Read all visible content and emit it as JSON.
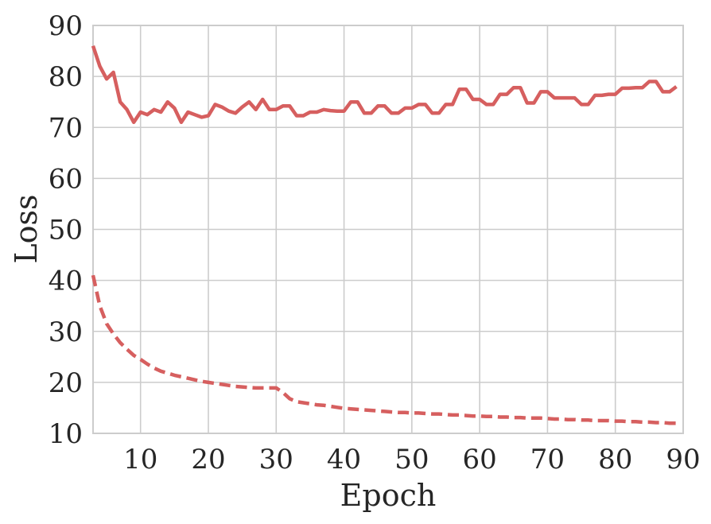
{
  "chart_data": {
    "type": "line",
    "title": "",
    "xlabel": "Epoch",
    "ylabel": "Loss",
    "xlim": [
      3,
      90
    ],
    "ylim": [
      10,
      90
    ],
    "xticks": [
      10,
      20,
      30,
      40,
      50,
      60,
      70,
      80,
      90
    ],
    "yticks": [
      10,
      20,
      30,
      40,
      50,
      60,
      70,
      80,
      90
    ],
    "grid": true,
    "legend": "none",
    "color": "#d65f5f",
    "series": [
      {
        "style": "solid",
        "x": [
          3,
          4,
          5,
          6,
          7,
          8,
          9,
          10,
          11,
          12,
          13,
          14,
          15,
          16,
          17,
          18,
          19,
          20,
          21,
          22,
          23,
          24,
          25,
          26,
          27,
          28,
          29,
          30,
          31,
          32,
          33,
          34,
          35,
          36,
          37,
          38,
          39,
          40,
          41,
          42,
          43,
          44,
          45,
          46,
          47,
          48,
          49,
          50,
          51,
          52,
          53,
          54,
          55,
          56,
          57,
          58,
          59,
          60,
          61,
          62,
          63,
          64,
          65,
          66,
          67,
          68,
          69,
          70,
          71,
          72,
          73,
          74,
          75,
          76,
          77,
          78,
          79,
          80,
          81,
          82,
          83,
          84,
          85,
          86,
          87,
          88,
          89
        ],
        "values": [
          86,
          82,
          79.5,
          80.8,
          75,
          73.5,
          71,
          73,
          72.5,
          73.5,
          73,
          75,
          73.8,
          71,
          73,
          72.5,
          72,
          72.3,
          74.5,
          74,
          73.2,
          72.8,
          74,
          75,
          73.5,
          75.5,
          73.5,
          73.5,
          74.2,
          74.2,
          72.3,
          72.3,
          73,
          73,
          73.5,
          73.3,
          73.2,
          73.2,
          75,
          75,
          72.8,
          72.8,
          74.2,
          74.2,
          72.8,
          72.8,
          73.8,
          73.8,
          74.5,
          74.5,
          72.8,
          72.8,
          74.5,
          74.5,
          77.5,
          77.5,
          75.5,
          75.5,
          74.5,
          74.5,
          76.5,
          76.5,
          77.8,
          77.8,
          74.8,
          74.8,
          77,
          77,
          75.8,
          75.8,
          75.8,
          75.8,
          74.5,
          74.5,
          76.3,
          76.3,
          76.5,
          76.5,
          77.7,
          77.7,
          77.8,
          77.8,
          79,
          79,
          77,
          77,
          78
        ]
      },
      {
        "style": "dashed",
        "x": [
          3,
          4,
          5,
          6,
          7,
          8,
          9,
          10,
          11,
          12,
          13,
          14,
          15,
          16,
          17,
          18,
          19,
          20,
          21,
          22,
          23,
          24,
          25,
          26,
          27,
          28,
          29,
          30,
          31,
          32,
          33,
          34,
          35,
          36,
          37,
          38,
          39,
          40,
          41,
          42,
          43,
          44,
          45,
          46,
          47,
          48,
          49,
          50,
          51,
          52,
          53,
          54,
          55,
          56,
          57,
          58,
          59,
          60,
          61,
          62,
          63,
          64,
          65,
          66,
          67,
          68,
          69,
          70,
          71,
          72,
          73,
          74,
          75,
          76,
          77,
          78,
          79,
          80,
          81,
          82,
          83,
          84,
          85,
          86,
          87,
          88,
          89
        ],
        "values": [
          41,
          35,
          31.5,
          29.5,
          27.8,
          26.5,
          25.3,
          24.5,
          23.6,
          22.8,
          22.2,
          21.8,
          21.4,
          21.1,
          20.8,
          20.5,
          20.2,
          20,
          19.8,
          19.6,
          19.4,
          19.2,
          19.1,
          19,
          18.9,
          18.9,
          18.9,
          18.9,
          18,
          16.8,
          16.2,
          16,
          15.8,
          15.6,
          15.5,
          15.3,
          15.1,
          14.9,
          14.8,
          14.7,
          14.6,
          14.5,
          14.4,
          14.3,
          14.2,
          14.1,
          14.1,
          14,
          14,
          13.9,
          13.8,
          13.8,
          13.7,
          13.6,
          13.6,
          13.5,
          13.4,
          13.4,
          13.3,
          13.3,
          13.2,
          13.2,
          13.1,
          13.1,
          13,
          13,
          13,
          12.9,
          12.8,
          12.8,
          12.7,
          12.7,
          12.6,
          12.6,
          12.5,
          12.5,
          12.5,
          12.4,
          12.4,
          12.3,
          12.3,
          12.2,
          12.2,
          12.1,
          12.1,
          12,
          12
        ]
      }
    ]
  }
}
